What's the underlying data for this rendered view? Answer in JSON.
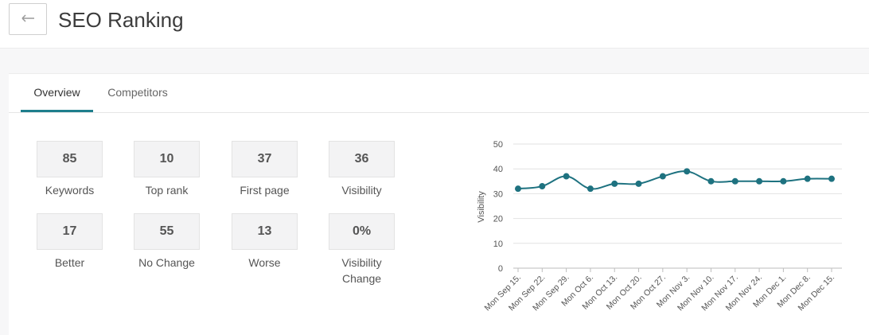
{
  "header": {
    "title": "SEO Ranking",
    "back_icon": "arrow-left-icon"
  },
  "tabs": [
    {
      "label": "Overview",
      "active": true
    },
    {
      "label": "Competitors",
      "active": false
    }
  ],
  "stats": [
    {
      "value": "85",
      "label": "Keywords"
    },
    {
      "value": "10",
      "label": "Top rank"
    },
    {
      "value": "37",
      "label": "First page"
    },
    {
      "value": "36",
      "label": "Visibility"
    },
    {
      "value": "17",
      "label": "Better"
    },
    {
      "value": "55",
      "label": "No Change"
    },
    {
      "value": "13",
      "label": "Worse"
    },
    {
      "value": "0%",
      "label": "Visibility Change"
    }
  ],
  "colors": {
    "accent": "#1e7e8c",
    "line": "#1e7280"
  },
  "chart_data": {
    "type": "line",
    "ylabel": "Visibility",
    "xlabel": "",
    "ylim": [
      0,
      50
    ],
    "yticks": [
      0,
      10,
      20,
      30,
      40,
      50
    ],
    "grid": true,
    "categories": [
      "Mon Sep 15.",
      "Mon Sep 22.",
      "Mon Sep 29.",
      "Mon Oct 6.",
      "Mon Oct 13.",
      "Mon Oct 20.",
      "Mon Oct 27.",
      "Mon Nov 3.",
      "Mon Nov 10.",
      "Mon Nov 17.",
      "Mon Nov 24.",
      "Mon Dec 1.",
      "Mon Dec 8.",
      "Mon Dec 15."
    ],
    "series": [
      {
        "values": [
          32,
          33,
          37,
          32,
          34,
          34,
          37,
          39,
          35,
          35,
          35,
          35,
          36,
          36
        ]
      }
    ]
  }
}
